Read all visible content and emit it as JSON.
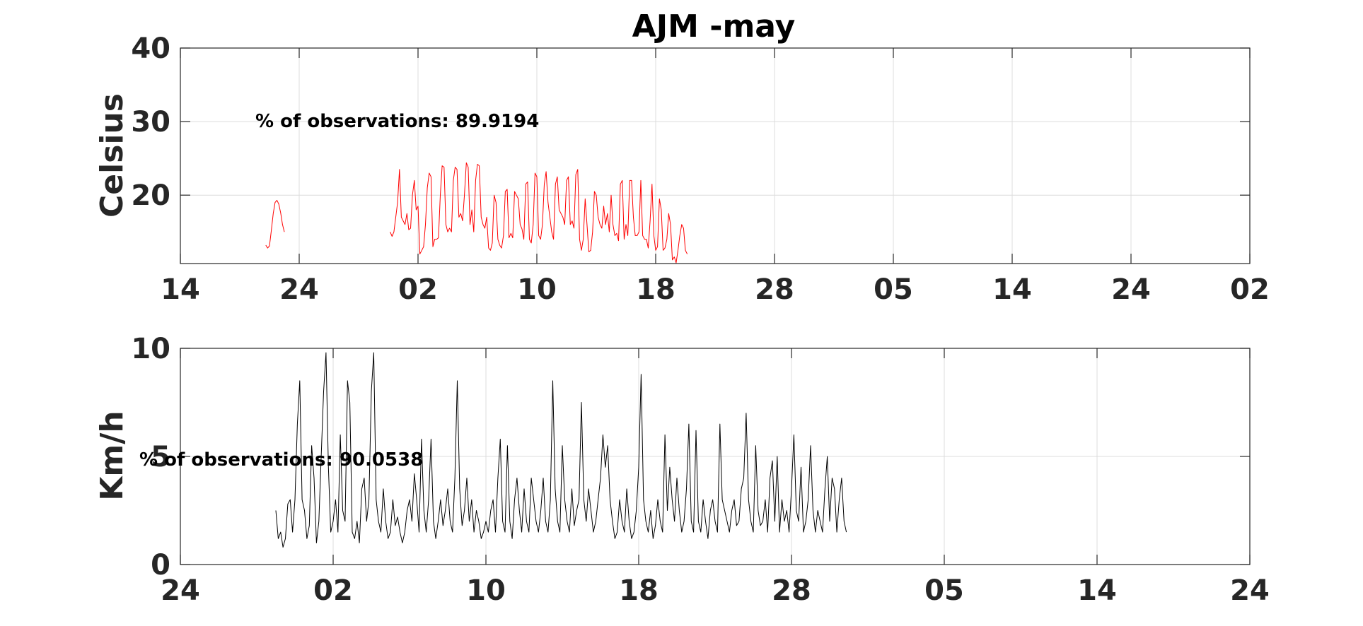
{
  "figure_title": "AJM -may",
  "chart_data": [
    {
      "type": "line",
      "ylabel": "Celsius",
      "xlabel": "",
      "annotation": "% of observations: 89.9194",
      "x_tick_labels": [
        "14",
        "24",
        "02",
        "10",
        "18",
        "28",
        "05",
        "14",
        "24",
        "02"
      ],
      "y_tick_labels": [
        "20",
        "30",
        "40"
      ],
      "ylim": [
        10.7,
        40
      ],
      "grid": true,
      "x_unit": "hours from first x tick (ticks every 8 days)",
      "series": [
        {
          "color": "#ff0000",
          "line_width": 1,
          "segments": [
            {
              "start_hour": 138,
              "values": [
                13.2,
                12.8,
                13.1,
                15.2,
                17.5,
                19.0,
                19.3,
                18.8,
                17.6,
                16.0,
                15.0
              ]
            },
            {
              "start_hour": 339,
              "values": [
                15,
                14.4,
                15,
                17,
                19,
                23.5,
                17,
                16.5,
                16,
                17.5,
                15.3,
                15.5,
                20,
                22,
                18,
                18.5,
                12,
                12.5,
                13,
                16,
                21,
                23,
                22.5,
                13,
                14,
                14,
                14.2,
                20,
                24,
                23.8,
                16,
                15,
                15.5,
                15,
                22,
                23.8,
                23.5,
                17,
                17.5,
                16.5,
                20,
                24.4,
                23.8,
                16,
                18,
                15,
                22,
                24.2,
                24,
                17,
                16,
                15.5,
                17,
                12.8,
                12.5,
                13.5,
                20,
                19,
                14,
                13.2,
                12.8,
                14.5,
                20.5,
                20.8,
                14.2,
                14.8,
                14.2,
                20.5,
                20,
                19.5,
                16,
                15.4,
                14,
                21.5,
                21.8,
                14,
                13.5,
                16,
                23,
                22.5,
                14.5,
                14,
                16,
                21.5,
                23.2,
                19,
                17,
                15,
                14,
                21.5,
                22.5,
                18,
                17.5,
                17,
                16,
                22,
                22.5,
                16,
                16.5,
                15.5,
                22.8,
                23.5,
                14,
                12.5,
                14,
                19.5,
                16,
                12.3,
                12.5,
                15,
                20.5,
                20,
                17,
                16,
                15.5,
                18.5,
                16,
                17.5,
                15,
                20,
                16,
                14.5,
                14.8,
                13.8,
                21.5,
                22,
                14,
                16,
                14.5,
                22,
                22,
                17,
                14.5,
                14.5,
                15,
                22,
                14.5,
                14,
                14,
                12.8,
                16.5,
                21.5,
                14.5,
                12.5,
                13,
                19.5,
                18,
                12.5,
                12.8,
                14,
                17.5,
                16,
                11.2,
                11.6,
                10.8,
                12.5,
                14.5,
                16,
                15.5,
                12.5,
                12
              ]
            }
          ]
        }
      ]
    },
    {
      "type": "line",
      "ylabel": "Km/h",
      "xlabel": "",
      "annotation": "% of observations: 90.0538",
      "x_tick_labels": [
        "24",
        "02",
        "10",
        "18",
        "28",
        "05",
        "14",
        "24"
      ],
      "y_tick_labels": [
        "0",
        "5",
        "10"
      ],
      "ylim": [
        0,
        10
      ],
      "grid": true,
      "x_unit": "hours from first x tick (ticks every 8 days)",
      "series": [
        {
          "color": "#000000",
          "line_width": 1,
          "start_hour": 120,
          "values": [
            2.5,
            1.2,
            1.5,
            0.8,
            1.2,
            2.8,
            3.0,
            1.5,
            3.0,
            6.5,
            8.5,
            3.0,
            2.5,
            1.2,
            1.8,
            5.5,
            4.0,
            1.0,
            2.0,
            5.0,
            8.0,
            9.8,
            4.5,
            1.5,
            2.0,
            3.0,
            1.5,
            6.0,
            2.5,
            2.0,
            8.5,
            7.5,
            1.5,
            1.2,
            2.0,
            1.0,
            3.5,
            4.0,
            2.0,
            3.0,
            8.0,
            9.8,
            3.0,
            2.0,
            1.5,
            3.5,
            2.0,
            1.2,
            1.5,
            3.0,
            1.8,
            2.2,
            1.5,
            1.0,
            1.5,
            2.5,
            3.0,
            2.0,
            4.2,
            3.0,
            1.5,
            5.8,
            2.5,
            1.5,
            3.0,
            5.8,
            2.0,
            1.2,
            2.0,
            3.0,
            1.8,
            2.5,
            3.5,
            2.0,
            1.5,
            4.0,
            8.5,
            3.5,
            1.8,
            2.5,
            4.0,
            2.0,
            3.0,
            1.5,
            2.5,
            2.0,
            1.2,
            1.5,
            2.0,
            1.5,
            2.5,
            3.0,
            1.5,
            4.0,
            5.8,
            2.0,
            1.5,
            5.5,
            2.0,
            1.2,
            3.0,
            4.0,
            2.5,
            1.5,
            3.5,
            2.0,
            1.5,
            4.0,
            3.0,
            2.0,
            1.5,
            2.5,
            4.0,
            2.0,
            1.5,
            3.0,
            8.5,
            3.5,
            2.0,
            1.5,
            5.5,
            3.0,
            2.0,
            1.5,
            3.5,
            1.8,
            2.5,
            3.0,
            7.5,
            3.0,
            2.0,
            3.5,
            2.5,
            1.5,
            2.0,
            3.0,
            4.0,
            6.0,
            4.5,
            5.5,
            3.0,
            2.0,
            1.2,
            1.5,
            3.0,
            2.0,
            1.5,
            3.5,
            2.0,
            1.2,
            1.5,
            2.5,
            4.5,
            8.8,
            3.0,
            2.0,
            1.5,
            2.5,
            1.2,
            1.8,
            3.0,
            2.0,
            1.5,
            6.0,
            2.5,
            4.5,
            3.0,
            2.0,
            4.0,
            2.5,
            1.5,
            2.0,
            3.5,
            6.5,
            2.0,
            1.5,
            6.2,
            2.0,
            1.5,
            3.0,
            2.0,
            1.2,
            2.5,
            3.0,
            2.0,
            1.5,
            6.5,
            3.0,
            2.5,
            2.0,
            1.5,
            2.5,
            3.0,
            1.8,
            2.0,
            3.5,
            4.0,
            7.0,
            3.0,
            2.0,
            1.5,
            5.5,
            2.5,
            1.8,
            2.0,
            3.0,
            1.5,
            4.0,
            4.8,
            2.0,
            5.0,
            1.5,
            3.0,
            2.0,
            2.5,
            1.5,
            3.5,
            6.0,
            2.5,
            2.0,
            4.5,
            1.5,
            2.0,
            3.0,
            5.5,
            2.5,
            1.5,
            2.5,
            2.0,
            1.5,
            3.5,
            5.0,
            2.0,
            4.0,
            3.5,
            1.5,
            3.0,
            4.0,
            2.0,
            1.5
          ]
        }
      ]
    }
  ]
}
